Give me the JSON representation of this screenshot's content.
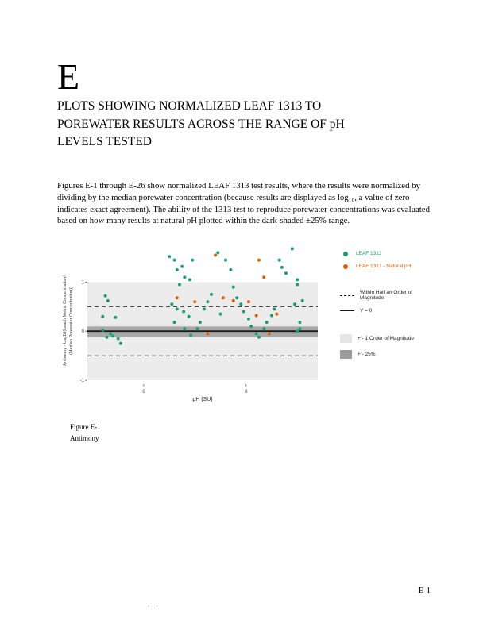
{
  "page": {
    "section_letter": "E",
    "title": "PLOTS SHOWING NORMALIZED LEAF 1313 TO POREWATER RESULTS ACROSS THE RANGE OF pH LEVELS TESTED",
    "paragraph": "Figures E-1 through E-26 show normalized LEAF 1313 test results, where the results were normalized by dividing by the median porewater concentration (because results are displayed as log₁₀, a value of zero indicates exact agreement). The ability of the 1313 test to reproduce porewater concentrations was evaluated based on how many results at natural pH plotted within the dark-shaded ±25% range.",
    "figure_caption_line1": "Figure E-1",
    "figure_caption_line2": "Antimony",
    "page_number": "E-1",
    "footer_marks": ". ."
  },
  "chart_data": {
    "type": "scatter",
    "title": "",
    "xlabel": "pH (SU)",
    "ylabel_line1": "Antimony - Log10(Leach Metric Concentration/",
    "ylabel_line2": "(Median Porewater Concentration))",
    "xlim": [
      4.9,
      9.4
    ],
    "ylim": [
      -1.08,
      1.8
    ],
    "xticks": [
      6,
      8
    ],
    "yticks": [
      -1,
      0,
      1
    ],
    "grid": false,
    "legend_position": "right",
    "bands": [
      {
        "label": "+/- 1 Order of Magnitude",
        "from": -1,
        "to": 1,
        "color": "#ececec"
      },
      {
        "label": "+/- 25%",
        "from": -0.125,
        "to": 0.097,
        "color": "#a8a8a8"
      }
    ],
    "ref_lines": [
      {
        "label": "Within Half an Order of Magnitude",
        "y": 0.5,
        "style": "dashed"
      },
      {
        "label": "Within Half an Order of Magnitude",
        "y": -0.5,
        "style": "dashed"
      },
      {
        "label": "Y = 0",
        "y": 0,
        "style": "solid"
      }
    ],
    "series": [
      {
        "name": "LEAF 1313",
        "color": "#1b9e77",
        "points": [
          [
            5.25,
            0.72
          ],
          [
            5.3,
            0.62
          ],
          [
            5.2,
            0.3
          ],
          [
            5.45,
            0.28
          ],
          [
            5.2,
            0.02
          ],
          [
            5.35,
            -0.05
          ],
          [
            5.28,
            -0.12
          ],
          [
            5.5,
            -0.15
          ],
          [
            5.55,
            -0.25
          ],
          [
            5.4,
            -0.1
          ],
          [
            6.5,
            1.52
          ],
          [
            6.6,
            1.45
          ],
          [
            6.65,
            1.25
          ],
          [
            6.75,
            1.32
          ],
          [
            6.8,
            1.1
          ],
          [
            6.9,
            1.05
          ],
          [
            6.7,
            0.95
          ],
          [
            6.95,
            1.45
          ],
          [
            6.55,
            0.55
          ],
          [
            6.65,
            0.45
          ],
          [
            6.78,
            0.4
          ],
          [
            6.88,
            0.3
          ],
          [
            6.6,
            0.18
          ],
          [
            6.8,
            0.05
          ],
          [
            6.92,
            -0.08
          ],
          [
            7.05,
            0.05
          ],
          [
            7.1,
            0.18
          ],
          [
            7.18,
            0.45
          ],
          [
            7.25,
            0.6
          ],
          [
            7.32,
            0.75
          ],
          [
            7.45,
            1.6
          ],
          [
            7.5,
            0.35
          ],
          [
            7.6,
            1.45
          ],
          [
            7.7,
            1.25
          ],
          [
            7.75,
            0.9
          ],
          [
            7.82,
            0.68
          ],
          [
            7.9,
            0.55
          ],
          [
            7.95,
            0.4
          ],
          [
            8.05,
            0.25
          ],
          [
            8.1,
            0.1
          ],
          [
            8.2,
            -0.05
          ],
          [
            8.25,
            -0.12
          ],
          [
            8.35,
            0.05
          ],
          [
            8.4,
            0.18
          ],
          [
            8.5,
            0.32
          ],
          [
            8.55,
            0.45
          ],
          [
            8.65,
            1.45
          ],
          [
            8.7,
            1.3
          ],
          [
            8.78,
            1.18
          ],
          [
            8.9,
            1.68
          ],
          [
            9.0,
            1.05
          ],
          [
            9.0,
            0.95
          ],
          [
            9.05,
            0.18
          ],
          [
            9.05,
            0.05
          ],
          [
            9.0,
            0.0
          ],
          [
            9.1,
            0.62
          ],
          [
            8.95,
            0.55
          ]
        ]
      },
      {
        "name": "LEAF 1313 - Natural pH",
        "color": "#d95f02",
        "points": [
          [
            6.65,
            0.68
          ],
          [
            7.0,
            0.6
          ],
          [
            7.4,
            1.55
          ],
          [
            7.55,
            0.68
          ],
          [
            7.25,
            -0.05
          ],
          [
            7.75,
            0.62
          ],
          [
            8.05,
            0.6
          ],
          [
            8.2,
            0.32
          ],
          [
            8.25,
            1.45
          ],
          [
            8.35,
            1.1
          ],
          [
            8.45,
            -0.05
          ],
          [
            8.6,
            0.35
          ]
        ]
      }
    ],
    "legend_groups": [
      {
        "items": [
          {
            "swatch": "dot",
            "color": "#1b9e77",
            "label": "LEAF 1313",
            "label_color": "#1b9e77"
          },
          {
            "swatch": "dot",
            "color": "#d95f02",
            "label": "LEAF 1313 - Natural pH",
            "label_color": "#d95f02"
          }
        ]
      },
      {
        "items": [
          {
            "swatch": "dashed",
            "label": "Within Half an Order of Magnitude"
          },
          {
            "swatch": "solid",
            "label": "Y = 0"
          }
        ]
      },
      {
        "items": [
          {
            "swatch": "box",
            "color": "#e6e6e6",
            "label": "+/- 1 Order of Magnitude"
          },
          {
            "swatch": "box",
            "color": "#9c9c9c",
            "label": "+/- 25%"
          }
        ]
      }
    ]
  }
}
